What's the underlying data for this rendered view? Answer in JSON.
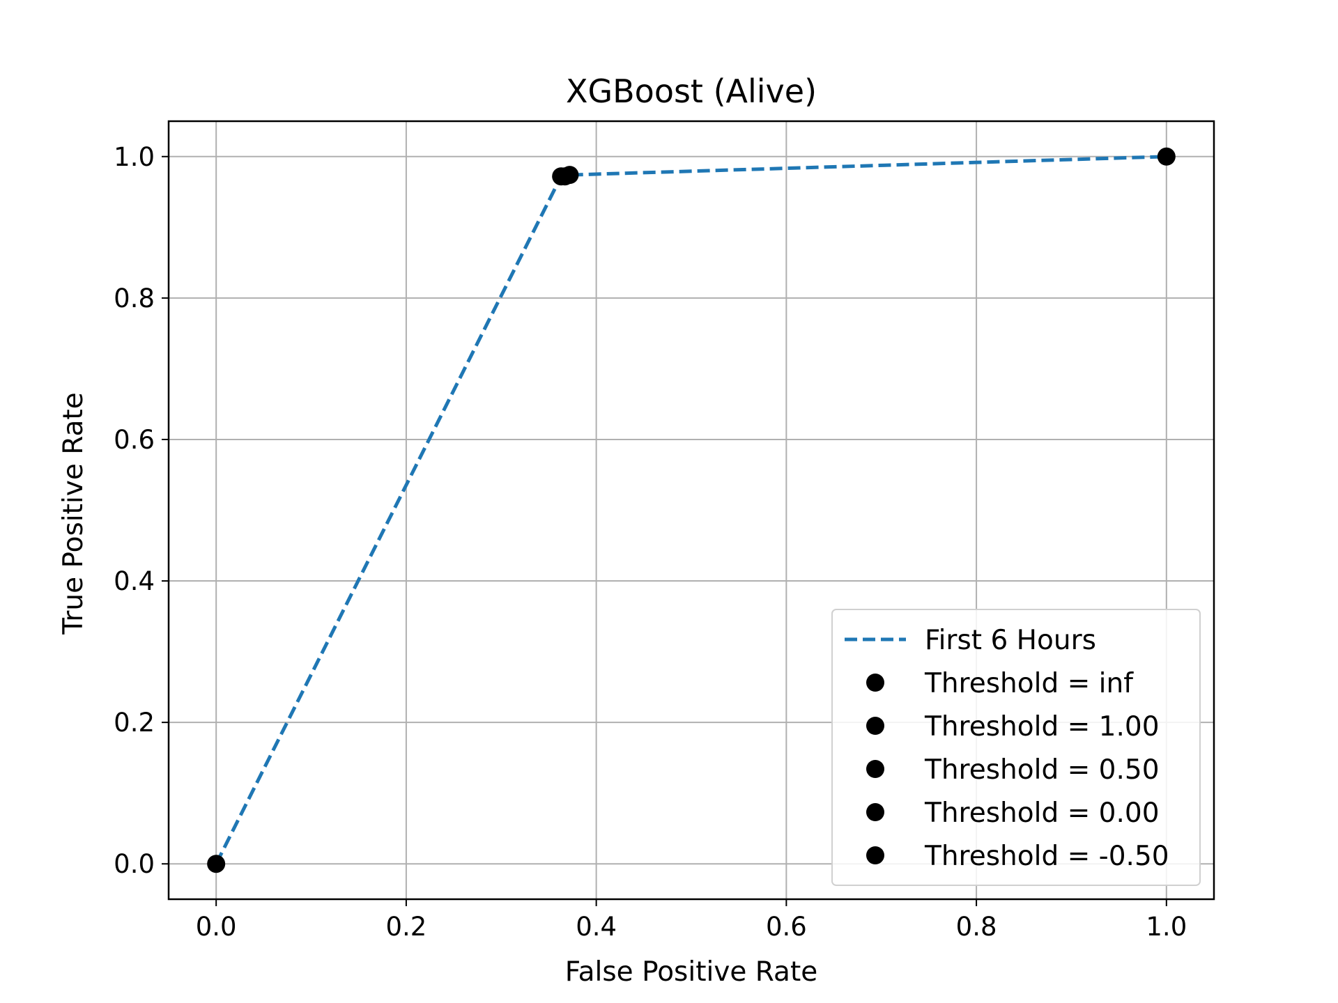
{
  "chart_data": {
    "type": "line",
    "title": "XGBoost (Alive)",
    "xlabel": "False Positive Rate",
    "ylabel": "True Positive Rate",
    "xlim": [
      -0.05,
      1.05
    ],
    "ylim": [
      -0.05,
      1.05
    ],
    "xticks": [
      0.0,
      0.2,
      0.4,
      0.6,
      0.8,
      1.0
    ],
    "yticks": [
      0.0,
      0.2,
      0.4,
      0.6,
      0.8,
      1.0
    ],
    "xtick_labels": [
      "0.0",
      "0.2",
      "0.4",
      "0.6",
      "0.8",
      "1.0"
    ],
    "ytick_labels": [
      "0.0",
      "0.2",
      "0.4",
      "0.6",
      "0.8",
      "1.0"
    ],
    "grid": true,
    "legend_position": "lower-right",
    "series": [
      {
        "name": "First 6 Hours",
        "style": "dashed",
        "color": "#1f77b4",
        "x": [
          0.0,
          0.363,
          0.366,
          0.369,
          0.372,
          1.0
        ],
        "y": [
          0.0,
          0.972,
          0.972,
          0.973,
          0.974,
          1.0
        ]
      }
    ],
    "threshold_points": [
      {
        "label": "Threshold = inf",
        "x": 0.0,
        "y": 0.0
      },
      {
        "label": "Threshold = 1.00",
        "x": 0.363,
        "y": 0.972
      },
      {
        "label": "Threshold = 0.50",
        "x": 0.367,
        "y": 0.972
      },
      {
        "label": "Threshold = 0.00",
        "x": 0.372,
        "y": 0.974
      },
      {
        "label": "Threshold = -0.50",
        "x": 1.0,
        "y": 1.0
      }
    ],
    "marker_color": "#000000"
  }
}
